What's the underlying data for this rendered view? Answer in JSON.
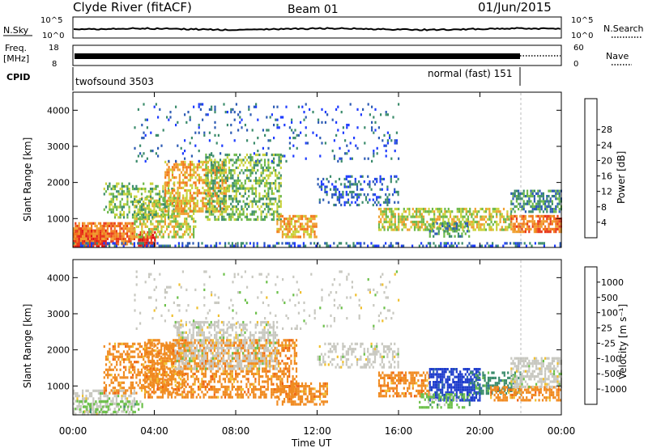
{
  "header": {
    "title": "Clyde River (fitACF)",
    "beam": "Beam 01",
    "date": "01/Jun/2015"
  },
  "noise_panel": {
    "left_label": "N.Sky",
    "right_label": "N.Search",
    "ticks_left": [
      "10^5",
      "10^0"
    ],
    "ticks_right": [
      "10^5",
      "10^0"
    ]
  },
  "freq_panel": {
    "left_label_1": "Freq.",
    "left_label_2": "[MHz]",
    "right_label": "Nave",
    "ticks_left": [
      "18",
      "8"
    ],
    "ticks_right": [
      "60",
      "0"
    ]
  },
  "cpid": {
    "label": "CPID",
    "segments": [
      {
        "text": "twofsound 3503"
      },
      {
        "text": "normal (fast) 151"
      }
    ]
  },
  "chart_data": [
    {
      "type": "heatmap",
      "name": "power",
      "ylabel": "Slant Range [km]",
      "xlabel": "Time UT",
      "xticks": [
        "00:00",
        "04:00",
        "08:00",
        "12:00",
        "16:00",
        "20:00",
        "00:00"
      ],
      "yticks": [
        "1000",
        "2000",
        "3000",
        "4000"
      ],
      "ylim": [
        200,
        4500
      ],
      "colorbar": {
        "label": "Power [dB]",
        "ticks": [
          "4",
          "8",
          "12",
          "16",
          "20",
          "24",
          "28"
        ],
        "colors": [
          "#1e3cff",
          "#2e5cb5",
          "#3c8c6c",
          "#6db84a",
          "#c9d23a",
          "#f0a030",
          "#f27a1e",
          "#e83a1a",
          "#e01010"
        ]
      },
      "regions": [
        {
          "t0": 0.0,
          "t1": 1.6,
          "r0": 250,
          "r1": 700,
          "level": 8,
          "density": 0.95
        },
        {
          "t0": 0.0,
          "t1": 3.0,
          "r0": 300,
          "r1": 900,
          "level": 6,
          "density": 0.8
        },
        {
          "t0": 3.2,
          "t1": 4.0,
          "r0": 250,
          "r1": 650,
          "level": 8,
          "density": 0.9
        },
        {
          "t0": 3.0,
          "t1": 6.0,
          "r0": 500,
          "r1": 1600,
          "level": 4,
          "density": 0.55
        },
        {
          "t0": 1.5,
          "t1": 5.0,
          "r0": 1000,
          "r1": 2000,
          "level": 3,
          "density": 0.45
        },
        {
          "t0": 4.5,
          "t1": 7.5,
          "r0": 1200,
          "r1": 2600,
          "level": 5,
          "density": 0.55
        },
        {
          "t0": 6.5,
          "t1": 10.2,
          "r0": 1000,
          "r1": 2800,
          "level": 3,
          "density": 0.5
        },
        {
          "t0": 10.0,
          "t1": 12.0,
          "r0": 500,
          "r1": 1100,
          "level": 5,
          "density": 0.6
        },
        {
          "t0": 12.0,
          "t1": 16.0,
          "r0": 1400,
          "r1": 2200,
          "level": 1,
          "density": 0.3
        },
        {
          "t0": 15.0,
          "t1": 21.5,
          "r0": 700,
          "r1": 1300,
          "level": 4,
          "density": 0.6
        },
        {
          "t0": 17.5,
          "t1": 19.5,
          "r0": 500,
          "r1": 900,
          "level": 2,
          "density": 0.5
        },
        {
          "t0": 21.5,
          "t1": 24.0,
          "r0": 600,
          "r1": 1100,
          "level": 6,
          "density": 0.75
        },
        {
          "t0": 21.5,
          "t1": 24.0,
          "r0": 1200,
          "r1": 1800,
          "level": 2,
          "density": 0.6
        },
        {
          "t0": 0.0,
          "t1": 24.0,
          "r0": 250,
          "r1": 350,
          "level": 1,
          "density": 0.4
        },
        {
          "t0": 3.0,
          "t1": 16.0,
          "r0": 2600,
          "r1": 4200,
          "level": 1,
          "density": 0.08
        }
      ]
    },
    {
      "type": "heatmap",
      "name": "velocity",
      "ylabel": "Slant Range [km]",
      "xlabel": "Time UT",
      "xticks": [
        "00:00",
        "04:00",
        "08:00",
        "12:00",
        "16:00",
        "20:00",
        "00:00"
      ],
      "yticks": [
        "1000",
        "2000",
        "3000",
        "4000"
      ],
      "ylim": [
        200,
        4500
      ],
      "colorbar": {
        "label": "Velocity [m s⁻¹]",
        "ticks": [
          "1000",
          "500",
          "100",
          "25",
          "-25",
          "-100",
          "-500",
          "-1000"
        ],
        "colors": [
          "#1e3ccc",
          "#2e68a8",
          "#3a8c6c",
          "#6cc04a",
          "#c8c8c0",
          "#f0c030",
          "#f08a20",
          "#f06010",
          "#e01010"
        ]
      },
      "regions": [
        {
          "t0": 0.0,
          "t1": 3.0,
          "r0": 250,
          "r1": 900,
          "color": 4,
          "density": 0.5
        },
        {
          "t0": 0.3,
          "t1": 3.5,
          "r0": 250,
          "r1": 600,
          "color": 3,
          "density": 0.35
        },
        {
          "t0": 1.5,
          "t1": 5.5,
          "r0": 800,
          "r1": 2200,
          "color": 6,
          "density": 0.45
        },
        {
          "t0": 3.5,
          "t1": 11.0,
          "r0": 700,
          "r1": 2300,
          "color": 6,
          "density": 0.55
        },
        {
          "t0": 5.0,
          "t1": 10.0,
          "r0": 1500,
          "r1": 2800,
          "color": 4,
          "density": 0.5
        },
        {
          "t0": 10.0,
          "t1": 12.5,
          "r0": 500,
          "r1": 1100,
          "color": 6,
          "density": 0.55
        },
        {
          "t0": 12.0,
          "t1": 16.0,
          "r0": 1500,
          "r1": 2200,
          "color": 4,
          "density": 0.35
        },
        {
          "t0": 15.0,
          "t1": 17.5,
          "r0": 700,
          "r1": 1400,
          "color": 6,
          "density": 0.55
        },
        {
          "t0": 17.5,
          "t1": 20.0,
          "r0": 600,
          "r1": 1500,
          "color": 0,
          "density": 0.7
        },
        {
          "t0": 17.0,
          "t1": 19.5,
          "r0": 400,
          "r1": 800,
          "color": 3,
          "density": 0.4
        },
        {
          "t0": 19.5,
          "t1": 22.0,
          "r0": 800,
          "r1": 1400,
          "color": 2,
          "density": 0.5
        },
        {
          "t0": 20.5,
          "t1": 24.0,
          "r0": 600,
          "r1": 1000,
          "color": 6,
          "density": 0.6
        },
        {
          "t0": 21.5,
          "t1": 24.0,
          "r0": 1000,
          "r1": 1800,
          "color": 4,
          "density": 0.6
        },
        {
          "t0": 3.0,
          "t1": 16.0,
          "r0": 2600,
          "r1": 4200,
          "color": 4,
          "density": 0.06
        }
      ]
    }
  ]
}
